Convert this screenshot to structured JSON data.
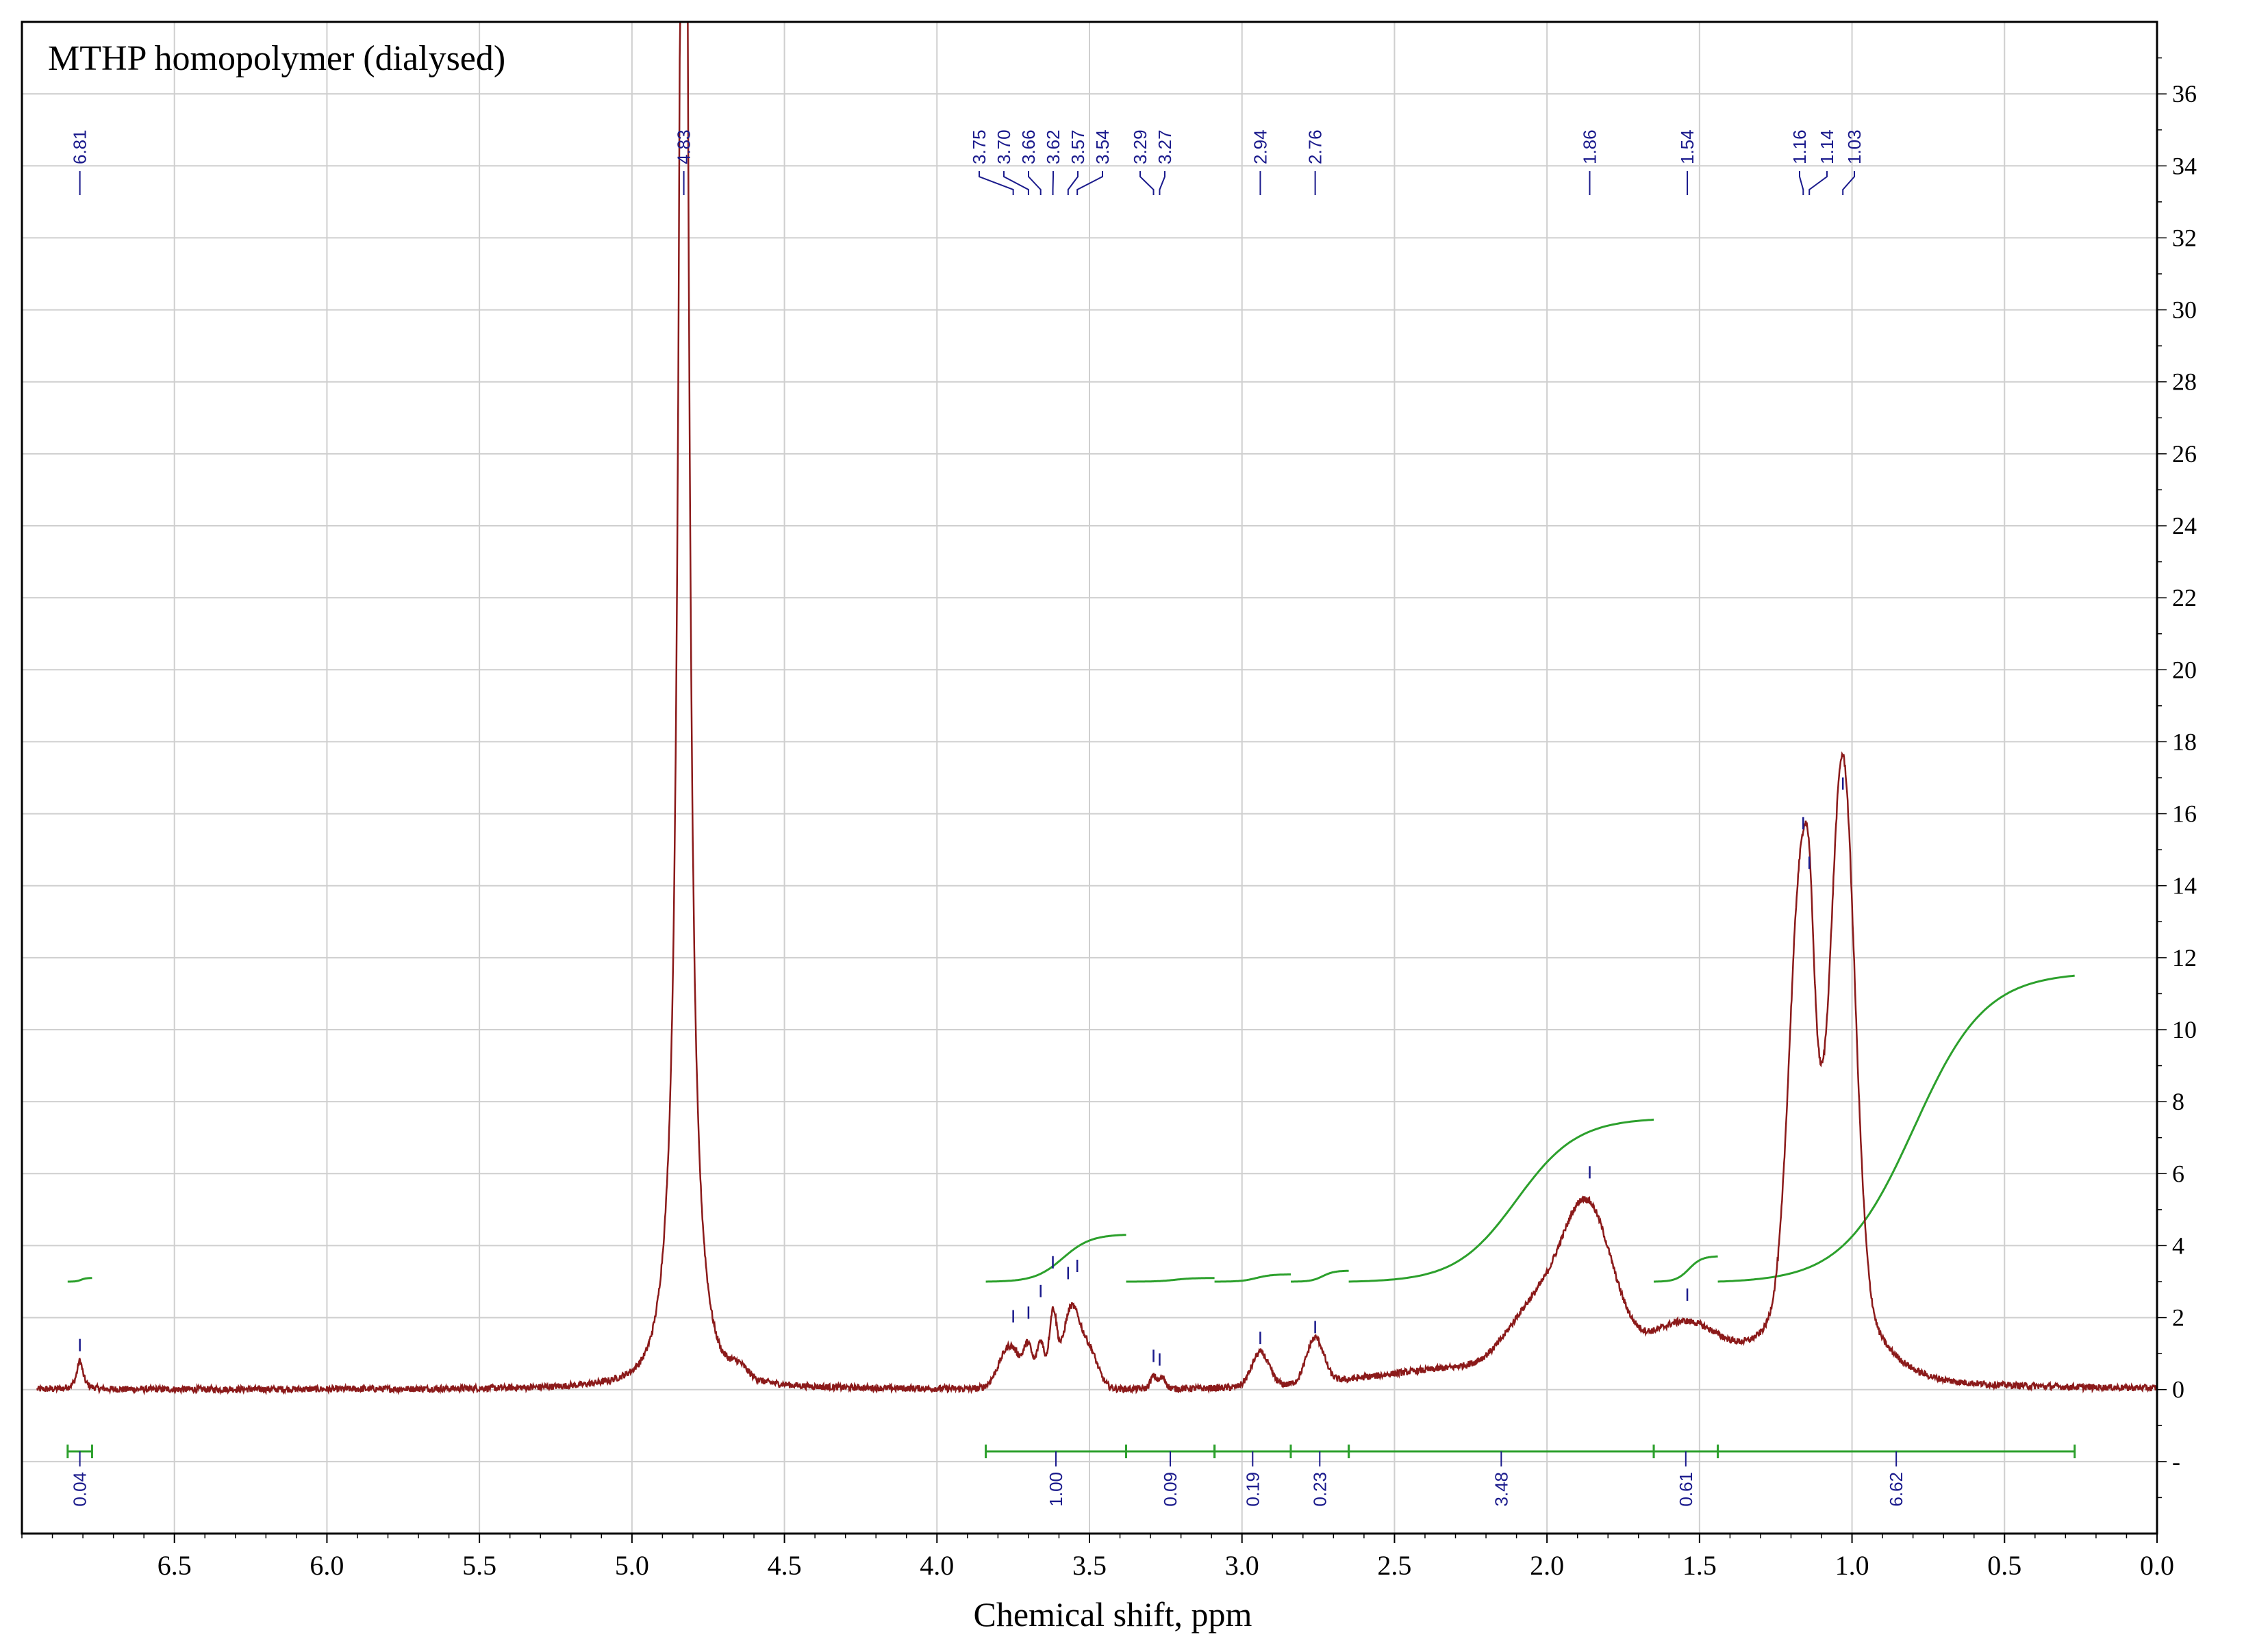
{
  "chart_data": {
    "type": "line",
    "title": "MTHP homopolymer (dialysed)",
    "xlabel": "Chemical shift, ppm",
    "ylabel": "",
    "xlim": [
      7.0,
      0.0
    ],
    "ylim": [
      -4,
      38
    ],
    "x_ticks": [
      "6.5",
      "6.0",
      "5.5",
      "5.0",
      "4.5",
      "4.0",
      "3.5",
      "3.0",
      "2.5",
      "2.0",
      "1.5",
      "1.0",
      "0.5",
      "0.0"
    ],
    "y_ticks": [
      "0",
      "2",
      "4",
      "6",
      "8",
      "10",
      "12",
      "14",
      "16",
      "18",
      "20",
      "22",
      "24",
      "26",
      "28",
      "30",
      "32",
      "34",
      "36"
    ],
    "grid": true,
    "colors": {
      "spectrum": "#8b1a1a",
      "integral": "#2ca02c",
      "labels": "#1a1a8c",
      "grid": "#cfcfcf"
    },
    "peak_labels": [
      "6.81",
      "4.83",
      "3.75",
      "3.70",
      "3.66",
      "3.62",
      "3.57",
      "3.54",
      "3.29",
      "3.27",
      "2.94",
      "2.76",
      "1.86",
      "1.54",
      "1.16",
      "1.14",
      "1.03"
    ],
    "peaks": [
      {
        "label": "6.81",
        "x": 6.81,
        "y": 0.8
      },
      {
        "label": "4.83",
        "x": 4.83,
        "y": 60
      },
      {
        "label": "3.75",
        "x": 3.75,
        "y": 1.6
      },
      {
        "label": "3.70",
        "x": 3.7,
        "y": 1.7
      },
      {
        "label": "3.66",
        "x": 3.66,
        "y": 2.3
      },
      {
        "label": "3.62",
        "x": 3.62,
        "y": 3.1
      },
      {
        "label": "3.57",
        "x": 3.57,
        "y": 2.8
      },
      {
        "label": "3.54",
        "x": 3.54,
        "y": 3.0
      },
      {
        "label": "3.29",
        "x": 3.29,
        "y": 0.5
      },
      {
        "label": "3.27",
        "x": 3.27,
        "y": 0.4
      },
      {
        "label": "2.94",
        "x": 2.94,
        "y": 1.0
      },
      {
        "label": "2.76",
        "x": 2.76,
        "y": 1.3
      },
      {
        "label": "1.86",
        "x": 1.86,
        "y": 5.6
      },
      {
        "label": "1.54",
        "x": 1.54,
        "y": 2.2
      },
      {
        "label": "1.16",
        "x": 1.16,
        "y": 15.3
      },
      {
        "label": "1.14",
        "x": 1.14,
        "y": 14.2
      },
      {
        "label": "1.03",
        "x": 1.03,
        "y": 16.4
      }
    ],
    "baseline_features": [
      {
        "x": 4.65,
        "y": 0.3
      },
      {
        "x": 2.08,
        "y": 3.0
      },
      {
        "x": 1.7,
        "y": 2.2
      },
      {
        "x": 1.45,
        "y": 1.8
      },
      {
        "x": 1.24,
        "y": 5.0
      },
      {
        "x": 1.1,
        "y": 11.2
      },
      {
        "x": 0.95,
        "y": 7.5
      }
    ],
    "integral_regions": [
      {
        "label": "0.04",
        "from": 6.85,
        "to": 6.77
      },
      {
        "label": "1.00",
        "from": 3.84,
        "to": 3.38
      },
      {
        "label": "0.09",
        "from": 3.38,
        "to": 3.09
      },
      {
        "label": "0.19",
        "from": 3.09,
        "to": 2.84
      },
      {
        "label": "0.23",
        "from": 2.84,
        "to": 2.65
      },
      {
        "label": "3.48",
        "from": 2.65,
        "to": 1.65
      },
      {
        "label": "0.61",
        "from": 1.65,
        "to": 1.44
      },
      {
        "label": "6.62",
        "from": 1.44,
        "to": 0.27
      }
    ],
    "integral_curves": [
      {
        "from": 6.85,
        "to": 6.77,
        "y_start": 3.0,
        "y_end": 3.1
      },
      {
        "from": 3.84,
        "to": 3.38,
        "y_start": 3.0,
        "y_end": 4.3
      },
      {
        "from": 3.38,
        "to": 3.09,
        "y_start": 3.0,
        "y_end": 3.1
      },
      {
        "from": 3.09,
        "to": 2.84,
        "y_start": 3.0,
        "y_end": 3.2
      },
      {
        "from": 2.84,
        "to": 2.65,
        "y_start": 3.0,
        "y_end": 3.3
      },
      {
        "from": 2.65,
        "to": 1.65,
        "y_start": 3.0,
        "y_end": 7.5
      },
      {
        "from": 1.65,
        "to": 1.44,
        "y_start": 3.0,
        "y_end": 3.7
      },
      {
        "from": 1.44,
        "to": 0.27,
        "y_start": 3.0,
        "y_end": 11.5
      }
    ]
  }
}
